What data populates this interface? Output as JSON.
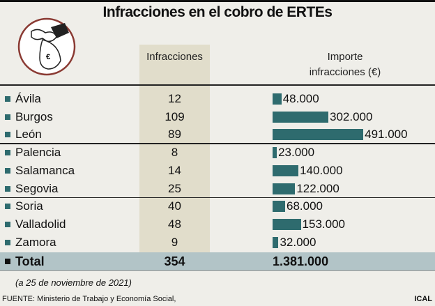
{
  "title": "Infracciones en el cobro de ERTEs",
  "headers": {
    "infracciones": "Infracciones",
    "importe_line1": "Importe",
    "importe_line2": "infracciones (€)"
  },
  "chart_data": {
    "type": "bar",
    "title": "Infracciones en el cobro de ERTEs",
    "categories": [
      "Ávila",
      "Burgos",
      "León",
      "Palencia",
      "Salamanca",
      "Segovia",
      "Soria",
      "Valladolid",
      "Zamora"
    ],
    "infracciones": [
      12,
      109,
      89,
      8,
      14,
      25,
      40,
      48,
      9
    ],
    "importe": [
      48000,
      302000,
      491000,
      23000,
      140000,
      122000,
      68000,
      153000,
      32000
    ],
    "importe_labels": [
      "48.000",
      "302.000",
      "491.000",
      "23.000",
      "140.000",
      "122.000",
      "68.000",
      "153.000",
      "32.000"
    ],
    "bar_color": "#2e6b6e"
  },
  "total": {
    "label": "Total",
    "infracciones": "354",
    "importe": "1.381.000"
  },
  "date_note": "(a 25 de noviembre de 2021)",
  "source": "FUENTE: Ministerio de Trabajo y Economía Social,",
  "agency": "ICAL",
  "icon": "hand-money-bag-euro-icon"
}
